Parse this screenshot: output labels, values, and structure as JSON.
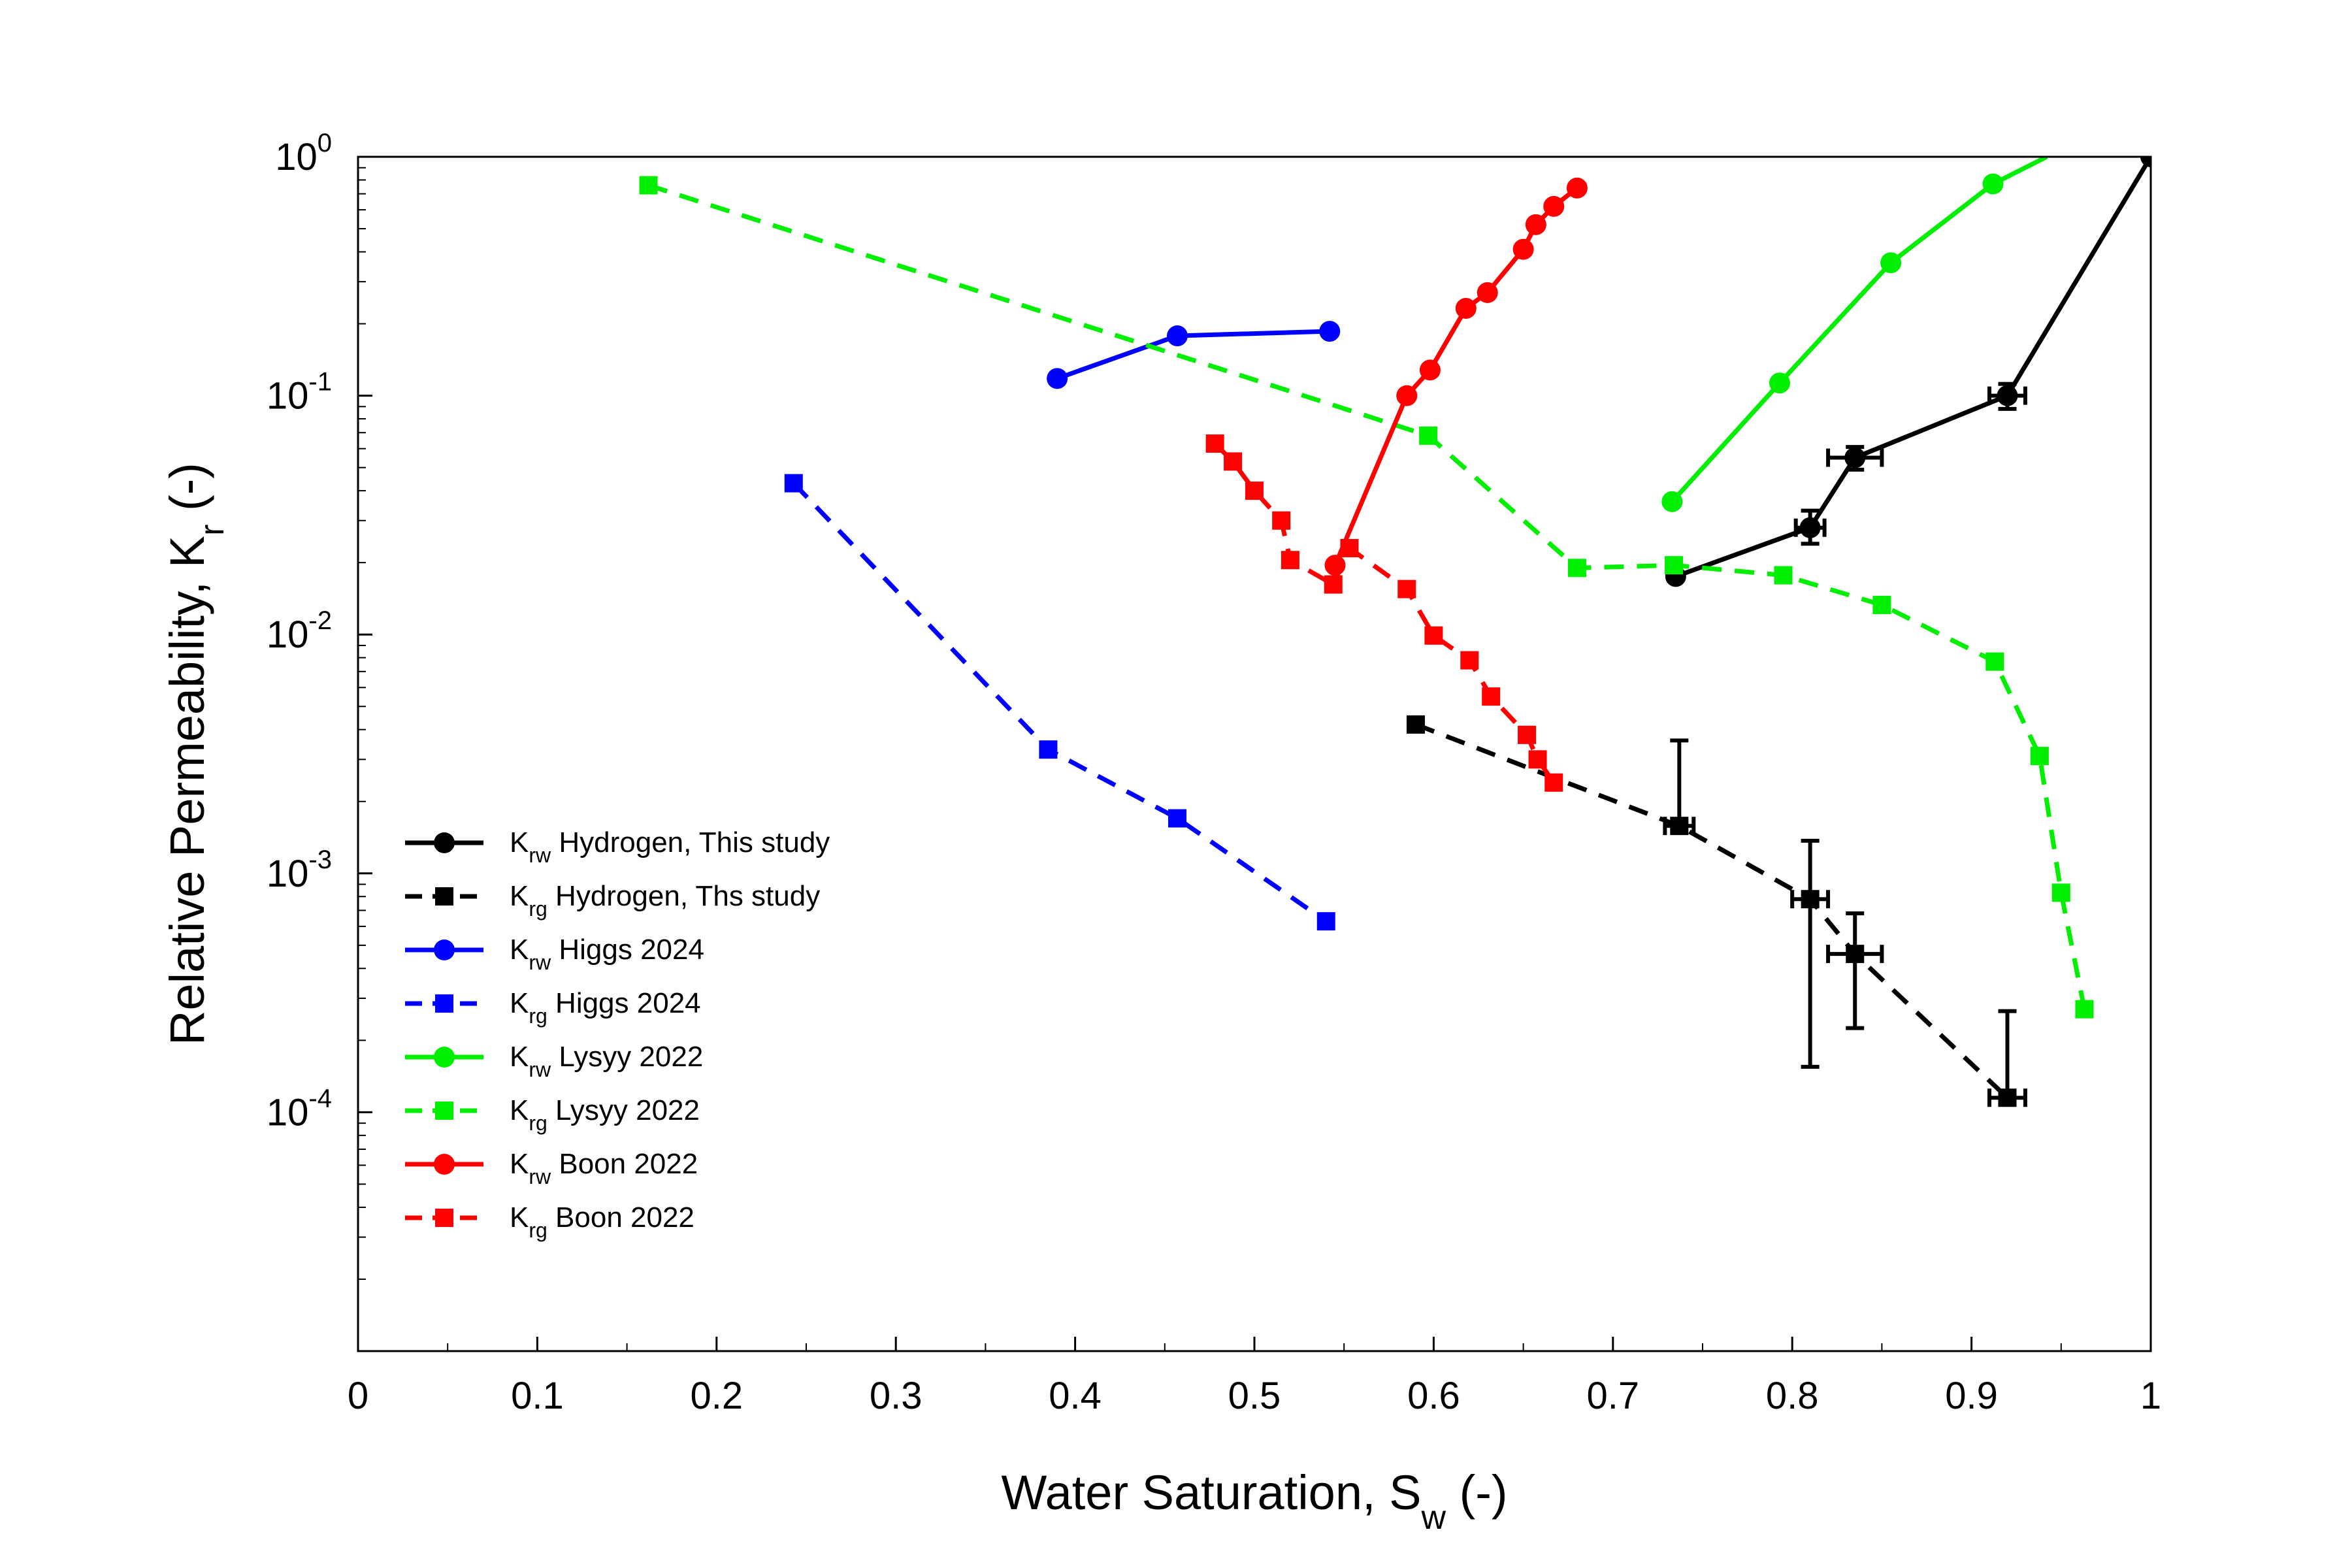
{
  "chart_data": {
    "type": "line",
    "title": "",
    "xlabel": {
      "main": "Water Saturation, S",
      "sub": "w",
      "tail": " (-)"
    },
    "ylabel": {
      "main": "Relative Permeability, K",
      "sub": "r",
      "tail": " (-)"
    },
    "xlim": [
      0,
      1
    ],
    "ylim": [
      1e-05,
      1
    ],
    "yscale": "log",
    "xticks": [
      {
        "v": 0,
        "label": "0"
      },
      {
        "v": 0.1,
        "label": "0.1"
      },
      {
        "v": 0.2,
        "label": "0.2"
      },
      {
        "v": 0.3,
        "label": "0.3"
      },
      {
        "v": 0.4,
        "label": "0.4"
      },
      {
        "v": 0.5,
        "label": "0.5"
      },
      {
        "v": 0.6,
        "label": "0.6"
      },
      {
        "v": 0.7,
        "label": "0.7"
      },
      {
        "v": 0.8,
        "label": "0.8"
      },
      {
        "v": 0.9,
        "label": "0.9"
      },
      {
        "v": 1,
        "label": "1"
      }
    ],
    "yticks": [
      {
        "v": 1,
        "base": "10",
        "exp": "0"
      },
      {
        "v": 0.1,
        "base": "10",
        "exp": "-1"
      },
      {
        "v": 0.01,
        "base": "10",
        "exp": "-2"
      },
      {
        "v": 0.001,
        "base": "10",
        "exp": "-3"
      },
      {
        "v": 0.0001,
        "base": "10",
        "exp": "-4"
      }
    ],
    "legend_position": "lower-left",
    "series": [
      {
        "name": "Krw Hydrogen, This study",
        "legend": {
          "k": "K",
          "sub": "rw",
          "text": " Hydrogen, This study"
        },
        "color": "#000000",
        "dash": "solid",
        "marker": "circle",
        "x": [
          0.735,
          0.81,
          0.835,
          0.92,
          1.0
        ],
        "y": [
          0.0175,
          0.028,
          0.055,
          0.1,
          1.0
        ],
        "xerr": [
          0,
          0.008,
          0.015,
          0.01,
          0
        ],
        "yerr_low": [
          null,
          0.024,
          0.049,
          0.088,
          null
        ],
        "yerr_high": [
          null,
          0.033,
          0.061,
          0.112,
          null
        ]
      },
      {
        "name": "Krg Hydrogen, Ths study",
        "legend": {
          "k": "K",
          "sub": "rg",
          "text": " Hydrogen, Ths study"
        },
        "color": "#000000",
        "dash": "dash",
        "marker": "square",
        "x": [
          0.59,
          0.737,
          0.81,
          0.835,
          0.92
        ],
        "y": [
          0.0042,
          0.00158,
          0.00078,
          0.00046,
          0.000115
        ],
        "xerr": [
          0,
          0.008,
          0.01,
          0.015,
          0.01
        ],
        "yerr_low": [
          null,
          0.00158,
          0.000155,
          0.000225,
          0.000112
        ],
        "yerr_high": [
          null,
          0.0036,
          0.00137,
          0.00068,
          0.000265
        ]
      },
      {
        "name": "Krw Higgs 2024",
        "legend": {
          "k": "K",
          "sub": "rw",
          "text": " Higgs 2024"
        },
        "color": "#0000ff",
        "dash": "solid",
        "marker": "circle",
        "x": [
          0.39,
          0.457,
          0.542
        ],
        "y": [
          0.118,
          0.178,
          0.186
        ]
      },
      {
        "name": "Krg Higgs 2024",
        "legend": {
          "k": "K",
          "sub": "rg",
          "text": " Higgs 2024"
        },
        "color": "#0000ff",
        "dash": "dash",
        "marker": "square",
        "x": [
          0.243,
          0.385,
          0.457,
          0.54
        ],
        "y": [
          0.043,
          0.0033,
          0.0017,
          0.00063
        ]
      },
      {
        "name": "Krw Lysyy 2022",
        "legend": {
          "k": "K",
          "sub": "rw",
          "text": " Lysyy 2022"
        },
        "color": "#00ee00",
        "dash": "solid",
        "marker": "circle",
        "x": [
          0.733,
          0.793,
          0.855,
          0.912,
          0.942
        ],
        "y": [
          0.036,
          0.113,
          0.36,
          0.77,
          1.0
        ],
        "marker_mask": [
          true,
          true,
          true,
          true,
          false
        ]
      },
      {
        "name": "Krg Lysyy 2022",
        "legend": {
          "k": "K",
          "sub": "rg",
          "text": " Lysyy 2022"
        },
        "color": "#00ee00",
        "dash": "dash",
        "marker": "square",
        "x": [
          0.162,
          0.597,
          0.68,
          0.734,
          0.795,
          0.85,
          0.913,
          0.938,
          0.95,
          0.963
        ],
        "y": [
          0.76,
          0.068,
          0.019,
          0.0195,
          0.0177,
          0.0133,
          0.0077,
          0.0031,
          0.00083,
          0.00027
        ]
      },
      {
        "name": "Krw Boon 2022",
        "legend": {
          "k": "K",
          "sub": "rw",
          "text": " Boon 2022"
        },
        "color": "#ff0000",
        "dash": "solid",
        "marker": "circle",
        "x": [
          0.545,
          0.585,
          0.598,
          0.618,
          0.63,
          0.65,
          0.657,
          0.667,
          0.68
        ],
        "y": [
          0.0195,
          0.1,
          0.128,
          0.232,
          0.27,
          0.41,
          0.52,
          0.62,
          0.74
        ]
      },
      {
        "name": "Krg Boon 2022",
        "legend": {
          "k": "K",
          "sub": "rg",
          "text": " Boon 2022"
        },
        "color": "#ff0000",
        "dash": "dash",
        "marker": "square",
        "x": [
          0.478,
          0.488,
          0.5,
          0.515,
          0.52,
          0.544,
          0.553,
          0.585,
          0.6,
          0.62,
          0.632,
          0.652,
          0.658,
          0.667
        ],
        "y": [
          0.063,
          0.053,
          0.04,
          0.03,
          0.0205,
          0.0162,
          0.023,
          0.0155,
          0.0099,
          0.0078,
          0.0055,
          0.0038,
          0.003,
          0.0024
        ]
      }
    ]
  }
}
